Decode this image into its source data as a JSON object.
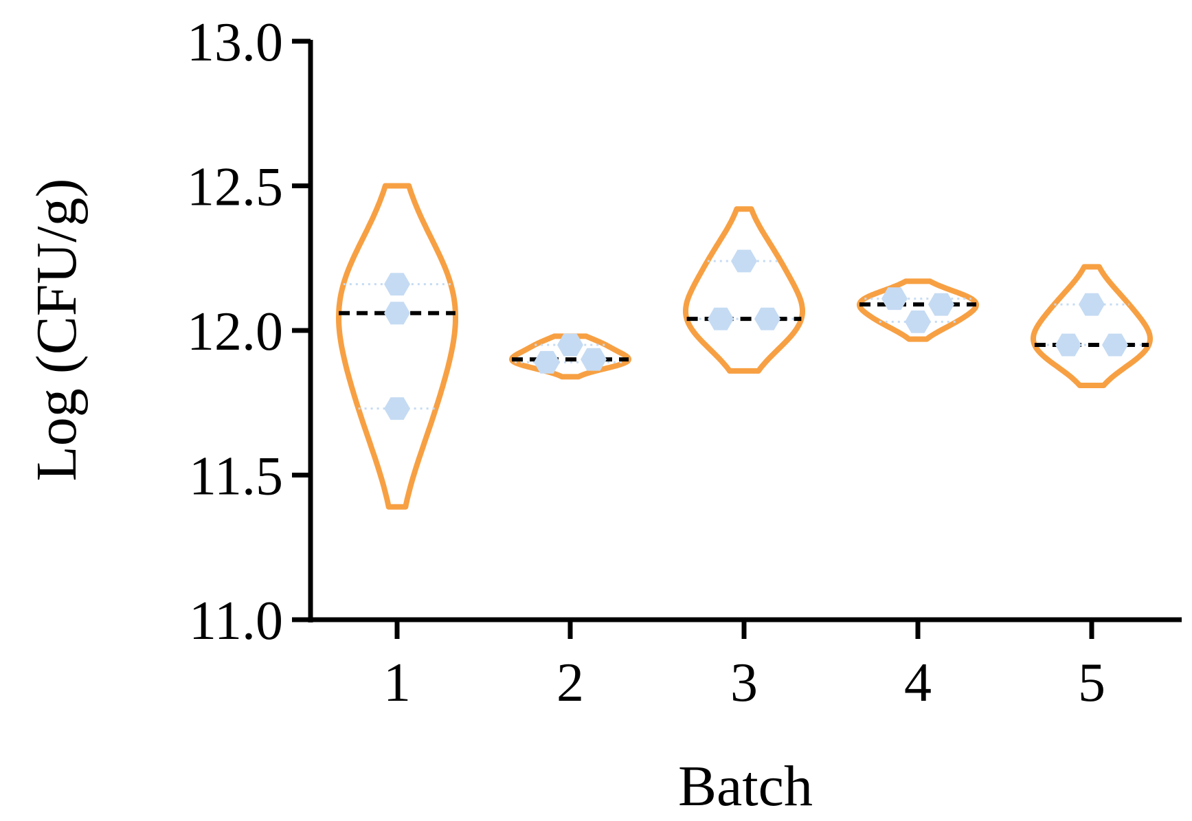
{
  "chart_data": {
    "type": "violin",
    "xlabel": "Batch",
    "ylabel": "Log (CFU/g)",
    "ylim": [
      11.0,
      13.0
    ],
    "yticks": [
      11.0,
      11.5,
      12.0,
      12.5,
      13.0
    ],
    "ytick_labels": [
      "11.0",
      "11.5",
      "12.0",
      "12.5",
      "13.0"
    ],
    "categories": [
      "1",
      "2",
      "3",
      "4",
      "5"
    ],
    "groups": [
      {
        "category": "1",
        "points": [
          12.16,
          12.06,
          11.73
        ],
        "median": 12.06,
        "quartiles": [
          11.73,
          12.16
        ],
        "range": [
          11.39,
          12.5
        ]
      },
      {
        "category": "2",
        "points": [
          11.95,
          11.89,
          11.9
        ],
        "median": 11.9,
        "quartiles": [
          11.89,
          11.95
        ],
        "range": [
          11.84,
          11.98
        ]
      },
      {
        "category": "3",
        "points": [
          12.24,
          12.04,
          12.04
        ],
        "median": 12.04,
        "quartiles": [
          12.04,
          12.24
        ],
        "range": [
          11.86,
          12.42
        ]
      },
      {
        "category": "4",
        "points": [
          12.11,
          12.03,
          12.09
        ],
        "median": 12.09,
        "quartiles": [
          12.03,
          12.11
        ],
        "range": [
          11.97,
          12.17
        ]
      },
      {
        "category": "5",
        "points": [
          12.09,
          11.95,
          11.95
        ],
        "median": 11.95,
        "quartiles": [
          11.95,
          12.09
        ],
        "range": [
          11.81,
          12.22
        ]
      }
    ],
    "colors": {
      "violin": "#F7A043",
      "point": "#C5DBF3",
      "median": "#000000",
      "quartile": "#C5DBF3",
      "axis": "#000000"
    },
    "grid": false,
    "legend": "none"
  }
}
